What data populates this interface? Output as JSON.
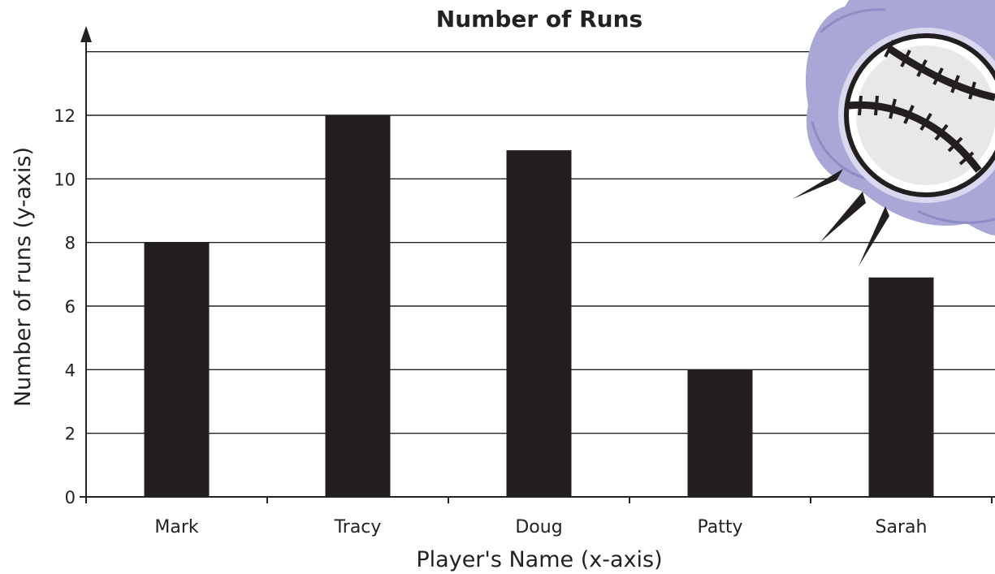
{
  "chart_data": {
    "type": "bar",
    "title": "Number of Runs",
    "xlabel": "Player's Name (x-axis)",
    "ylabel": "Number of runs (y-axis)",
    "categories": [
      "Mark",
      "Tracy",
      "Doug",
      "Patty",
      "Sarah"
    ],
    "values": [
      8,
      12,
      10.9,
      4,
      6.9
    ],
    "ylim": [
      0,
      14
    ],
    "yticks": [
      0,
      2,
      4,
      6,
      8,
      10,
      12
    ],
    "grid": true,
    "bar_color": "#231f20",
    "decoration": "baseball-clipart"
  }
}
